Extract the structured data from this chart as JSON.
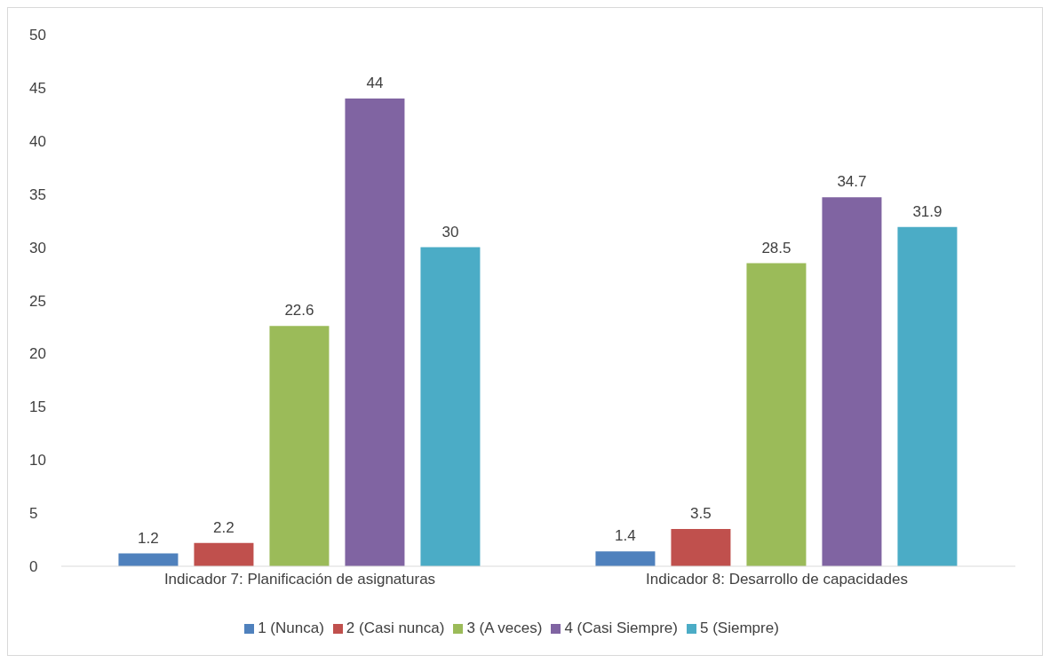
{
  "chart_data": {
    "type": "bar",
    "categories": [
      "Indicador 7: Planificación de asignaturas",
      "Indicador 8: Desarrollo de capacidades"
    ],
    "series": [
      {
        "name": "1 (Nunca)",
        "color": "#4f81bd",
        "values": [
          1.2,
          1.4
        ]
      },
      {
        "name": "2 (Casi nunca)",
        "color": "#c0504d",
        "values": [
          2.2,
          3.5
        ]
      },
      {
        "name": "3 (A veces)",
        "color": "#9bbb59",
        "values": [
          22.6,
          28.5
        ]
      },
      {
        "name": "4 (Casi Siempre)",
        "color": "#8064a2",
        "values": [
          44,
          34.7
        ]
      },
      {
        "name": "5 (Siempre)",
        "color": "#4bacc6",
        "values": [
          30,
          31.9
        ]
      }
    ],
    "ylim": [
      0,
      50
    ],
    "yticks": [
      0,
      5,
      10,
      15,
      20,
      25,
      30,
      35,
      40,
      45,
      50
    ],
    "grid": false,
    "legend": "bottom",
    "data_labels": true
  }
}
